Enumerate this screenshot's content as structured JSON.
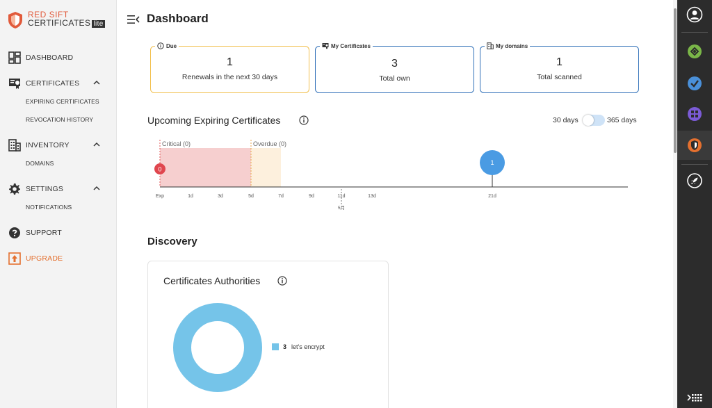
{
  "brand": {
    "line1": "RED SIFT",
    "line2": "CERTIFICATES",
    "badge": "lite",
    "accent": "#e15a3b"
  },
  "sidebar": {
    "items": [
      {
        "label": "DASHBOARD",
        "icon": "dashboard-icon"
      },
      {
        "label": "CERTIFICATES",
        "icon": "certificate-icon",
        "expanded": true,
        "children": [
          "EXPIRING CERTIFICATES",
          "REVOCATION HISTORY"
        ]
      },
      {
        "label": "INVENTORY",
        "icon": "building-icon",
        "expanded": true,
        "children": [
          "DOMAINS"
        ]
      },
      {
        "label": "SETTINGS",
        "icon": "gear-icon",
        "expanded": true,
        "children": [
          "NOTIFICATIONS"
        ]
      },
      {
        "label": "SUPPORT",
        "icon": "help-icon"
      },
      {
        "label": "UPGRADE",
        "icon": "upgrade-icon",
        "color": "#e4702f"
      }
    ]
  },
  "header": {
    "title": "Dashboard"
  },
  "cards": [
    {
      "legend": "Due",
      "value": "1",
      "caption": "Renewals in the next 30 days",
      "icon": "info-icon",
      "border": "#f2c04d"
    },
    {
      "legend": "My Certificates",
      "value": "3",
      "caption": "Total own",
      "icon": "certificate-icon",
      "border": "#2f6fb8"
    },
    {
      "legend": "My domains",
      "value": "1",
      "caption": "Total scanned",
      "icon": "building-icon",
      "border": "#2f6fb8"
    }
  ],
  "upcoming": {
    "title": "Upcoming Expiring Certificates",
    "range_left": "30 days",
    "range_right": "365 days",
    "critical_label": "Critical (0)",
    "overdue_label": "Overdue (0)",
    "critical_count": "0",
    "ticks": [
      "Exp",
      "1d",
      "3d",
      "5d",
      "7d",
      "9d",
      "11d",
      "13d",
      "21d"
    ],
    "today_label": "5月",
    "markers": [
      {
        "at": "21d",
        "count": "1",
        "color": "#4a9be3"
      }
    ],
    "critical_color": "#f6cfcf",
    "overdue_color": "#fdf0dd"
  },
  "discovery": {
    "title": "Discovery",
    "ca_title": "Certificates Authorities",
    "ca_items": [
      {
        "count": "3",
        "name": "let's encrypt",
        "color": "#75c4e9"
      }
    ]
  },
  "rail": {
    "icons": [
      "user-icon",
      "app-green-icon",
      "app-blue-icon",
      "app-purple-icon",
      "app-certificates-icon",
      "rocket-icon",
      "apps-grid-icon"
    ],
    "active": "app-certificates-icon"
  }
}
